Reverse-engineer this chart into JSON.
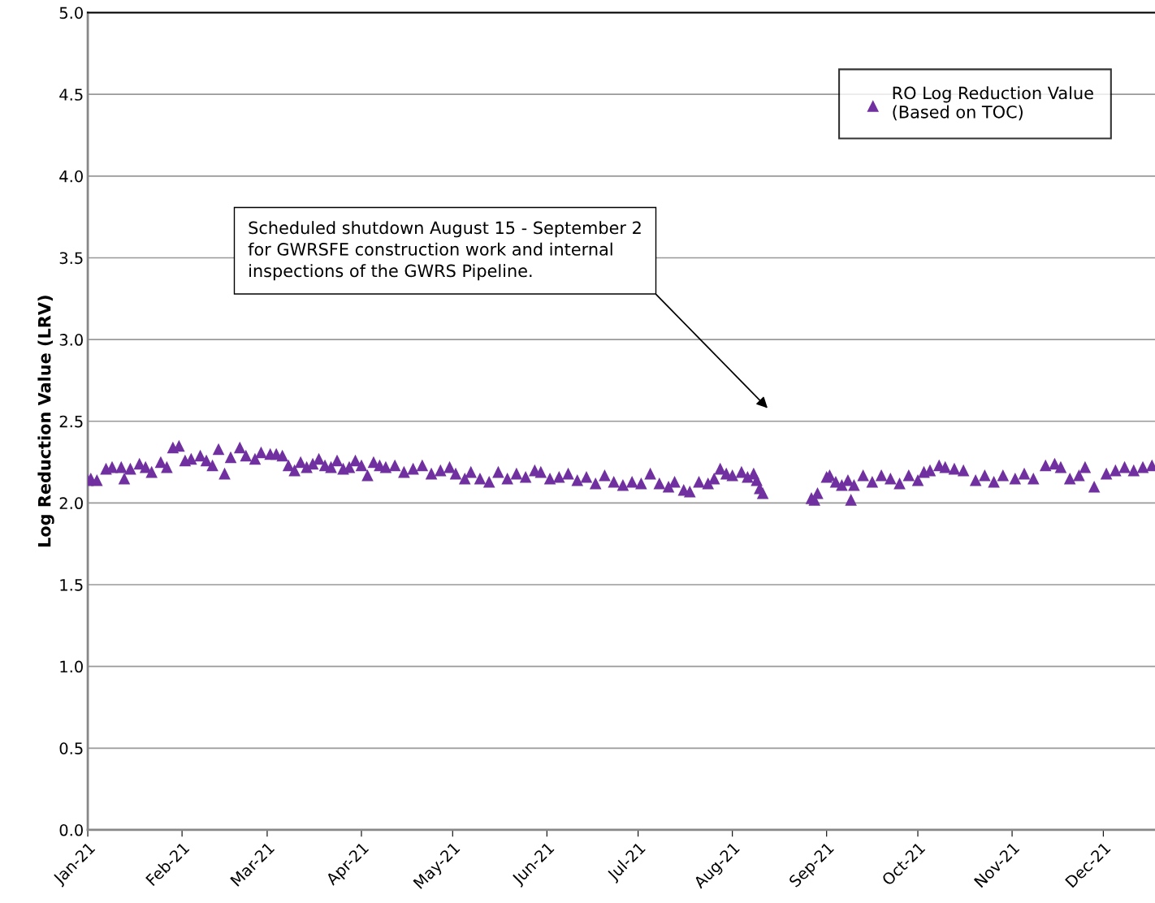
{
  "chart_data": {
    "type": "scatter",
    "ylabel": "Log Reduction Value (LRV)",
    "xlim": [
      "2021-01-01",
      "2021-12-18"
    ],
    "xticks": [
      {
        "value": "2021-01-01",
        "label": "Jan-21"
      },
      {
        "value": "2021-02-01",
        "label": "Feb-21"
      },
      {
        "value": "2021-03-01",
        "label": "Mar-21"
      },
      {
        "value": "2021-04-01",
        "label": "Apr-21"
      },
      {
        "value": "2021-05-01",
        "label": "May-21"
      },
      {
        "value": "2021-06-01",
        "label": "Jun-21"
      },
      {
        "value": "2021-07-01",
        "label": "Jul-21"
      },
      {
        "value": "2021-08-01",
        "label": "Aug-21"
      },
      {
        "value": "2021-09-01",
        "label": "Sep-21"
      },
      {
        "value": "2021-10-01",
        "label": "Oct-21"
      },
      {
        "value": "2021-11-01",
        "label": "Nov-21"
      },
      {
        "value": "2021-12-01",
        "label": "Dec-21"
      }
    ],
    "ylim": [
      0,
      5
    ],
    "yticks": [
      {
        "value": 0,
        "label": "0.0"
      },
      {
        "value": 0.5,
        "label": "0.5"
      },
      {
        "value": 1,
        "label": "1.0"
      },
      {
        "value": 1.5,
        "label": "1.5"
      },
      {
        "value": 2,
        "label": "2.0"
      },
      {
        "value": 2.5,
        "label": "2.5"
      },
      {
        "value": 3,
        "label": "3.0"
      },
      {
        "value": 3.5,
        "label": "3.5"
      },
      {
        "value": 4,
        "label": "4.0"
      },
      {
        "value": 4.5,
        "label": "4.5"
      },
      {
        "value": 5,
        "label": "5.0"
      }
    ],
    "grid": "y",
    "legend": "top right",
    "marker": "triangle",
    "annotations": [
      "Scheduled shutdown August 15 - September 2\nfor GWRSFE construction work and internal\ninspections of the GWRS Pipeline."
    ],
    "series": [
      {
        "name": "RO Log Reduction Value\n(Based on TOC)",
        "color": "#7030a0",
        "x": [
          "2021-01-01",
          "2021-01-02",
          "2021-01-04",
          "2021-01-07",
          "2021-01-09",
          "2021-01-12",
          "2021-01-13",
          "2021-01-15",
          "2021-01-18",
          "2021-01-20",
          "2021-01-22",
          "2021-01-25",
          "2021-01-27",
          "2021-01-29",
          "2021-01-31",
          "2021-02-02",
          "2021-02-04",
          "2021-02-07",
          "2021-02-09",
          "2021-02-11",
          "2021-02-13",
          "2021-02-15",
          "2021-02-17",
          "2021-02-20",
          "2021-02-22",
          "2021-02-25",
          "2021-02-27",
          "2021-03-02",
          "2021-03-04",
          "2021-03-06",
          "2021-03-08",
          "2021-03-10",
          "2021-03-12",
          "2021-03-14",
          "2021-03-16",
          "2021-03-18",
          "2021-03-20",
          "2021-03-22",
          "2021-03-24",
          "2021-03-26",
          "2021-03-28",
          "2021-03-30",
          "2021-04-01",
          "2021-04-03",
          "2021-04-05",
          "2021-04-07",
          "2021-04-09",
          "2021-04-12",
          "2021-04-15",
          "2021-04-18",
          "2021-04-21",
          "2021-04-24",
          "2021-04-27",
          "2021-04-30",
          "2021-05-02",
          "2021-05-05",
          "2021-05-07",
          "2021-05-10",
          "2021-05-13",
          "2021-05-16",
          "2021-05-19",
          "2021-05-22",
          "2021-05-25",
          "2021-05-28",
          "2021-05-30",
          "2021-06-02",
          "2021-06-05",
          "2021-06-08",
          "2021-06-11",
          "2021-06-14",
          "2021-06-17",
          "2021-06-20",
          "2021-06-23",
          "2021-06-26",
          "2021-06-29",
          "2021-07-02",
          "2021-07-05",
          "2021-07-08",
          "2021-07-11",
          "2021-07-13",
          "2021-07-16",
          "2021-07-18",
          "2021-07-21",
          "2021-07-24",
          "2021-07-26",
          "2021-07-28",
          "2021-07-30",
          "2021-08-01",
          "2021-08-04",
          "2021-08-06",
          "2021-08-08",
          "2021-08-09",
          "2021-08-10",
          "2021-08-11",
          "2021-08-27",
          "2021-08-28",
          "2021-08-29",
          "2021-09-01",
          "2021-09-02",
          "2021-09-04",
          "2021-09-06",
          "2021-09-08",
          "2021-09-09",
          "2021-09-10",
          "2021-09-13",
          "2021-09-16",
          "2021-09-19",
          "2021-09-22",
          "2021-09-25",
          "2021-09-28",
          "2021-10-01",
          "2021-10-03",
          "2021-10-05",
          "2021-10-08",
          "2021-10-10",
          "2021-10-13",
          "2021-10-16",
          "2021-10-20",
          "2021-10-23",
          "2021-10-26",
          "2021-10-29",
          "2021-11-02",
          "2021-11-05",
          "2021-11-08",
          "2021-11-12",
          "2021-11-15",
          "2021-11-17",
          "2021-11-20",
          "2021-11-23",
          "2021-11-25",
          "2021-11-28",
          "2021-12-02",
          "2021-12-05",
          "2021-12-08",
          "2021-12-11",
          "2021-12-14",
          "2021-12-17"
        ],
        "values": [
          2.14,
          2.15,
          2.14,
          2.21,
          2.22,
          2.22,
          2.15,
          2.21,
          2.24,
          2.22,
          2.19,
          2.25,
          2.22,
          2.34,
          2.35,
          2.26,
          2.27,
          2.29,
          2.26,
          2.23,
          2.33,
          2.18,
          2.28,
          2.34,
          2.29,
          2.27,
          2.31,
          2.3,
          2.3,
          2.29,
          2.23,
          2.2,
          2.25,
          2.22,
          2.24,
          2.27,
          2.23,
          2.22,
          2.26,
          2.21,
          2.22,
          2.26,
          2.23,
          2.17,
          2.25,
          2.23,
          2.22,
          2.23,
          2.19,
          2.21,
          2.23,
          2.18,
          2.2,
          2.22,
          2.18,
          2.15,
          2.19,
          2.15,
          2.13,
          2.19,
          2.15,
          2.18,
          2.16,
          2.2,
          2.19,
          2.15,
          2.16,
          2.18,
          2.14,
          2.16,
          2.12,
          2.17,
          2.13,
          2.11,
          2.13,
          2.12,
          2.18,
          2.12,
          2.1,
          2.13,
          2.08,
          2.07,
          2.13,
          2.12,
          2.15,
          2.21,
          2.18,
          2.17,
          2.19,
          2.16,
          2.18,
          2.14,
          2.09,
          2.06,
          2.03,
          2.02,
          2.06,
          2.16,
          2.17,
          2.13,
          2.11,
          2.14,
          2.02,
          2.11,
          2.17,
          2.13,
          2.17,
          2.15,
          2.12,
          2.17,
          2.14,
          2.19,
          2.2,
          2.23,
          2.22,
          2.21,
          2.2,
          2.14,
          2.17,
          2.13,
          2.17,
          2.15,
          2.18,
          2.15,
          2.23,
          2.24,
          2.22,
          2.15,
          2.17,
          2.22,
          2.1,
          2.18,
          2.2,
          2.22,
          2.2,
          2.22,
          2.23
        ]
      }
    ]
  }
}
